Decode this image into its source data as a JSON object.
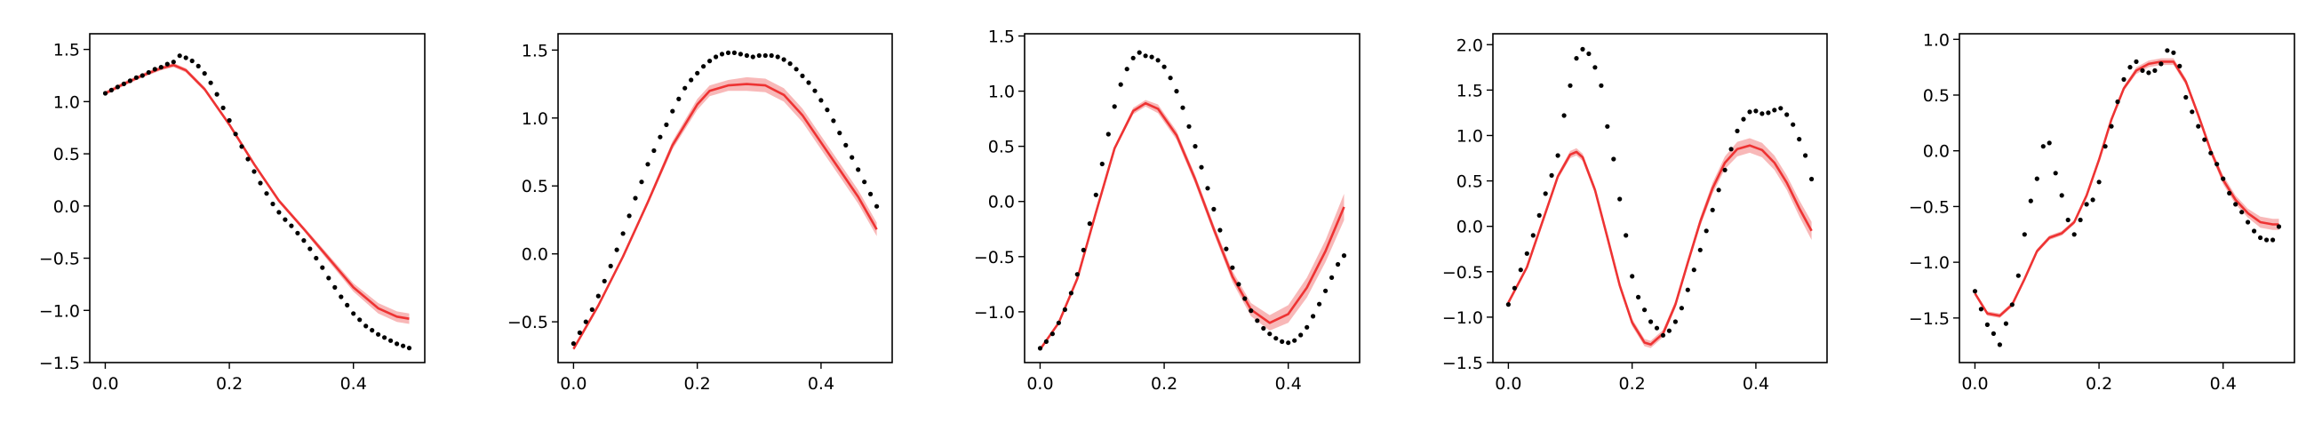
{
  "colors": {
    "model": "#ee3333",
    "band": "#f6a0a0",
    "observed": "#000000"
  },
  "chart_data": [
    {
      "type": "line",
      "xlim": [
        -0.025,
        0.515
      ],
      "ylim": [
        -1.5,
        1.65
      ],
      "xticks": [
        0.0,
        0.2,
        0.4
      ],
      "xtick_labels": [
        "0.0",
        "0.2",
        "0.4"
      ],
      "yticks": [
        -1.5,
        -1.0,
        -0.5,
        0.0,
        0.5,
        1.0,
        1.5
      ],
      "ytick_labels": [
        "−1.5",
        "−1.0",
        "−0.5",
        "0.0",
        "0.5",
        "1.0",
        "1.5"
      ],
      "series": [
        {
          "kind": "band_line",
          "x": [
            0.0,
            0.03,
            0.06,
            0.09,
            0.11,
            0.13,
            0.16,
            0.2,
            0.24,
            0.28,
            0.32,
            0.36,
            0.4,
            0.44,
            0.47,
            0.49
          ],
          "y": [
            1.08,
            1.17,
            1.25,
            1.32,
            1.35,
            1.3,
            1.12,
            0.78,
            0.4,
            0.05,
            -0.22,
            -0.5,
            -0.78,
            -0.98,
            -1.06,
            -1.08
          ],
          "band": [
            0.02,
            0.02,
            0.02,
            0.02,
            0.02,
            0.02,
            0.02,
            0.02,
            0.02,
            0.02,
            0.02,
            0.03,
            0.04,
            0.05,
            0.05,
            0.05
          ]
        },
        {
          "kind": "scatter",
          "x": [
            0.0,
            0.01,
            0.02,
            0.03,
            0.04,
            0.05,
            0.06,
            0.07,
            0.08,
            0.09,
            0.1,
            0.11,
            0.12,
            0.13,
            0.14,
            0.15,
            0.16,
            0.17,
            0.18,
            0.19,
            0.2,
            0.21,
            0.22,
            0.23,
            0.24,
            0.25,
            0.26,
            0.27,
            0.28,
            0.29,
            0.3,
            0.31,
            0.32,
            0.33,
            0.34,
            0.35,
            0.36,
            0.37,
            0.38,
            0.39,
            0.4,
            0.41,
            0.42,
            0.43,
            0.44,
            0.45,
            0.46,
            0.47,
            0.48,
            0.49
          ],
          "y": [
            1.08,
            1.11,
            1.14,
            1.17,
            1.2,
            1.23,
            1.25,
            1.28,
            1.31,
            1.33,
            1.36,
            1.38,
            1.44,
            1.42,
            1.39,
            1.34,
            1.27,
            1.18,
            1.07,
            0.94,
            0.82,
            0.69,
            0.57,
            0.45,
            0.33,
            0.22,
            0.12,
            0.02,
            -0.06,
            -0.13,
            -0.19,
            -0.26,
            -0.33,
            -0.41,
            -0.5,
            -0.59,
            -0.69,
            -0.78,
            -0.87,
            -0.95,
            -1.03,
            -1.09,
            -1.15,
            -1.19,
            -1.23,
            -1.26,
            -1.29,
            -1.32,
            -1.34,
            -1.36
          ]
        }
      ]
    },
    {
      "type": "line",
      "xlim": [
        -0.025,
        0.515
      ],
      "ylim": [
        -0.8,
        1.62
      ],
      "xticks": [
        0.0,
        0.2,
        0.4
      ],
      "xtick_labels": [
        "0.0",
        "0.2",
        "0.4"
      ],
      "yticks": [
        -0.5,
        0.0,
        0.5,
        1.0,
        1.5
      ],
      "ytick_labels": [
        "−0.5",
        "0.0",
        "0.5",
        "1.0",
        "1.5"
      ],
      "series": [
        {
          "kind": "band_line",
          "x": [
            0.0,
            0.04,
            0.08,
            0.12,
            0.16,
            0.2,
            0.22,
            0.25,
            0.28,
            0.31,
            0.34,
            0.37,
            0.4,
            0.43,
            0.46,
            0.49
          ],
          "y": [
            -0.7,
            -0.38,
            -0.02,
            0.38,
            0.8,
            1.1,
            1.2,
            1.24,
            1.25,
            1.24,
            1.17,
            1.02,
            0.82,
            0.62,
            0.42,
            0.18
          ],
          "band": [
            0.01,
            0.01,
            0.01,
            0.02,
            0.03,
            0.04,
            0.04,
            0.04,
            0.05,
            0.05,
            0.05,
            0.05,
            0.05,
            0.05,
            0.05,
            0.05
          ]
        },
        {
          "kind": "scatter",
          "x": [
            0.0,
            0.01,
            0.02,
            0.03,
            0.04,
            0.05,
            0.06,
            0.07,
            0.08,
            0.09,
            0.1,
            0.11,
            0.12,
            0.13,
            0.14,
            0.15,
            0.16,
            0.17,
            0.18,
            0.19,
            0.2,
            0.21,
            0.22,
            0.23,
            0.24,
            0.25,
            0.26,
            0.27,
            0.28,
            0.29,
            0.3,
            0.31,
            0.32,
            0.33,
            0.34,
            0.35,
            0.36,
            0.37,
            0.38,
            0.39,
            0.4,
            0.41,
            0.42,
            0.43,
            0.44,
            0.45,
            0.46,
            0.47,
            0.48,
            0.49
          ],
          "y": [
            -0.66,
            -0.58,
            -0.5,
            -0.41,
            -0.31,
            -0.2,
            -0.09,
            0.03,
            0.15,
            0.28,
            0.41,
            0.53,
            0.66,
            0.76,
            0.86,
            0.95,
            1.05,
            1.14,
            1.22,
            1.28,
            1.33,
            1.38,
            1.42,
            1.45,
            1.47,
            1.48,
            1.48,
            1.47,
            1.46,
            1.45,
            1.46,
            1.46,
            1.46,
            1.45,
            1.43,
            1.4,
            1.36,
            1.31,
            1.26,
            1.2,
            1.13,
            1.06,
            0.98,
            0.89,
            0.8,
            0.71,
            0.62,
            0.53,
            0.44,
            0.35
          ]
        }
      ]
    },
    {
      "type": "line",
      "xlim": [
        -0.025,
        0.515
      ],
      "ylim": [
        -1.46,
        1.52
      ],
      "xticks": [
        0.0,
        0.2,
        0.4
      ],
      "xtick_labels": [
        "0.0",
        "0.2",
        "0.4"
      ],
      "yticks": [
        -1.0,
        -0.5,
        0.0,
        0.5,
        1.0,
        1.5
      ],
      "ytick_labels": [
        "−1.0",
        "−0.5",
        "0.0",
        "0.5",
        "1.0",
        "1.5"
      ],
      "series": [
        {
          "kind": "band_line",
          "x": [
            0.0,
            0.03,
            0.06,
            0.09,
            0.12,
            0.15,
            0.17,
            0.19,
            0.22,
            0.25,
            0.28,
            0.31,
            0.34,
            0.37,
            0.4,
            0.43,
            0.46,
            0.49
          ],
          "y": [
            -1.34,
            -1.1,
            -0.7,
            -0.1,
            0.48,
            0.82,
            0.89,
            0.84,
            0.6,
            0.2,
            -0.25,
            -0.68,
            -0.98,
            -1.1,
            -1.02,
            -0.78,
            -0.45,
            -0.05
          ],
          "band": [
            0.01,
            0.01,
            0.01,
            0.02,
            0.02,
            0.03,
            0.03,
            0.04,
            0.04,
            0.04,
            0.04,
            0.05,
            0.06,
            0.07,
            0.08,
            0.09,
            0.1,
            0.12
          ]
        },
        {
          "kind": "scatter",
          "x": [
            0.0,
            0.01,
            0.02,
            0.03,
            0.04,
            0.05,
            0.06,
            0.07,
            0.08,
            0.09,
            0.1,
            0.11,
            0.12,
            0.13,
            0.14,
            0.15,
            0.16,
            0.17,
            0.18,
            0.19,
            0.2,
            0.21,
            0.22,
            0.23,
            0.24,
            0.25,
            0.26,
            0.27,
            0.28,
            0.29,
            0.3,
            0.31,
            0.32,
            0.33,
            0.34,
            0.35,
            0.36,
            0.37,
            0.38,
            0.39,
            0.4,
            0.41,
            0.42,
            0.43,
            0.44,
            0.45,
            0.46,
            0.47,
            0.48,
            0.49
          ],
          "y": [
            -1.33,
            -1.27,
            -1.2,
            -1.1,
            -0.98,
            -0.83,
            -0.66,
            -0.44,
            -0.2,
            0.06,
            0.34,
            0.61,
            0.86,
            1.06,
            1.2,
            1.3,
            1.35,
            1.32,
            1.31,
            1.28,
            1.22,
            1.12,
            1.0,
            0.85,
            0.68,
            0.5,
            0.31,
            0.12,
            -0.07,
            -0.26,
            -0.43,
            -0.6,
            -0.75,
            -0.88,
            -0.99,
            -1.08,
            -1.15,
            -1.2,
            -1.24,
            -1.27,
            -1.28,
            -1.26,
            -1.21,
            -1.14,
            -1.04,
            -0.93,
            -0.81,
            -0.69,
            -0.57,
            -0.49
          ]
        }
      ]
    },
    {
      "type": "line",
      "xlim": [
        -0.025,
        0.515
      ],
      "ylim": [
        -1.5,
        2.12
      ],
      "xticks": [
        0.0,
        0.2,
        0.4
      ],
      "xtick_labels": [
        "0.0",
        "0.2",
        "0.4"
      ],
      "yticks": [
        -1.5,
        -1.0,
        -0.5,
        0.0,
        0.5,
        1.0,
        1.5,
        2.0
      ],
      "ytick_labels": [
        "−1.5",
        "−1.0",
        "−0.5",
        "0.0",
        "0.5",
        "1.0",
        "1.5",
        "2.0"
      ],
      "series": [
        {
          "kind": "band_line",
          "x": [
            0.0,
            0.03,
            0.06,
            0.08,
            0.1,
            0.11,
            0.12,
            0.14,
            0.16,
            0.18,
            0.2,
            0.22,
            0.23,
            0.25,
            0.27,
            0.29,
            0.31,
            0.33,
            0.35,
            0.37,
            0.39,
            0.41,
            0.43,
            0.45,
            0.47,
            0.49
          ],
          "y": [
            -0.84,
            -0.45,
            0.15,
            0.55,
            0.79,
            0.82,
            0.76,
            0.4,
            -0.12,
            -0.65,
            -1.06,
            -1.28,
            -1.3,
            -1.18,
            -0.86,
            -0.4,
            0.05,
            0.42,
            0.7,
            0.85,
            0.89,
            0.84,
            0.7,
            0.48,
            0.2,
            -0.05
          ],
          "band": [
            0.01,
            0.01,
            0.02,
            0.03,
            0.04,
            0.04,
            0.04,
            0.04,
            0.04,
            0.04,
            0.04,
            0.04,
            0.04,
            0.04,
            0.04,
            0.04,
            0.05,
            0.06,
            0.07,
            0.08,
            0.08,
            0.08,
            0.08,
            0.08,
            0.09,
            0.1
          ]
        },
        {
          "kind": "scatter",
          "x": [
            0.0,
            0.01,
            0.02,
            0.03,
            0.04,
            0.05,
            0.06,
            0.07,
            0.08,
            0.09,
            0.1,
            0.11,
            0.12,
            0.13,
            0.14,
            0.15,
            0.16,
            0.17,
            0.18,
            0.19,
            0.2,
            0.21,
            0.22,
            0.23,
            0.24,
            0.25,
            0.26,
            0.27,
            0.28,
            0.29,
            0.3,
            0.31,
            0.32,
            0.33,
            0.34,
            0.35,
            0.36,
            0.37,
            0.38,
            0.39,
            0.4,
            0.41,
            0.42,
            0.43,
            0.44,
            0.45,
            0.46,
            0.47,
            0.48,
            0.49
          ],
          "y": [
            -0.86,
            -0.68,
            -0.48,
            -0.3,
            -0.1,
            0.12,
            0.36,
            0.56,
            0.78,
            1.22,
            1.55,
            1.85,
            1.95,
            1.9,
            1.75,
            1.55,
            1.1,
            0.74,
            0.3,
            -0.1,
            -0.55,
            -0.78,
            -0.92,
            -1.05,
            -1.12,
            -1.2,
            -1.15,
            -1.05,
            -0.9,
            -0.7,
            -0.48,
            -0.26,
            -0.05,
            0.18,
            0.4,
            0.62,
            0.85,
            1.05,
            1.18,
            1.26,
            1.27,
            1.24,
            1.25,
            1.28,
            1.3,
            1.23,
            1.12,
            0.96,
            0.78,
            0.52
          ]
        }
      ]
    },
    {
      "type": "line",
      "xlim": [
        -0.025,
        0.515
      ],
      "ylim": [
        -1.9,
        1.05
      ],
      "xticks": [
        0.0,
        0.2,
        0.4
      ],
      "xtick_labels": [
        "0.0",
        "0.2",
        "0.4"
      ],
      "yticks": [
        -1.5,
        -1.0,
        -0.5,
        0.0,
        0.5,
        1.0
      ],
      "ytick_labels": [
        "−1.5",
        "−1.0",
        "−0.5",
        "0.0",
        "0.5",
        "1.0"
      ],
      "series": [
        {
          "kind": "band_line",
          "x": [
            0.0,
            0.02,
            0.04,
            0.06,
            0.08,
            0.1,
            0.12,
            0.14,
            0.16,
            0.18,
            0.2,
            0.22,
            0.24,
            0.26,
            0.28,
            0.3,
            0.32,
            0.34,
            0.36,
            0.38,
            0.4,
            0.42,
            0.44,
            0.46,
            0.48,
            0.49
          ],
          "y": [
            -1.28,
            -1.46,
            -1.48,
            -1.38,
            -1.15,
            -0.9,
            -0.78,
            -0.74,
            -0.64,
            -0.4,
            -0.08,
            0.28,
            0.56,
            0.72,
            0.78,
            0.8,
            0.8,
            0.62,
            0.32,
            0.0,
            -0.26,
            -0.44,
            -0.56,
            -0.64,
            -0.66,
            -0.66
          ],
          "band": [
            0.01,
            0.02,
            0.02,
            0.02,
            0.02,
            0.02,
            0.02,
            0.02,
            0.02,
            0.02,
            0.02,
            0.02,
            0.02,
            0.03,
            0.03,
            0.03,
            0.03,
            0.03,
            0.03,
            0.03,
            0.04,
            0.04,
            0.04,
            0.05,
            0.05,
            0.05
          ]
        },
        {
          "kind": "scatter",
          "x": [
            0.0,
            0.01,
            0.02,
            0.03,
            0.04,
            0.05,
            0.06,
            0.07,
            0.08,
            0.09,
            0.1,
            0.11,
            0.12,
            0.13,
            0.14,
            0.15,
            0.16,
            0.17,
            0.18,
            0.19,
            0.2,
            0.21,
            0.22,
            0.23,
            0.24,
            0.25,
            0.26,
            0.27,
            0.28,
            0.29,
            0.3,
            0.31,
            0.32,
            0.33,
            0.34,
            0.35,
            0.36,
            0.37,
            0.38,
            0.39,
            0.4,
            0.41,
            0.42,
            0.43,
            0.44,
            0.45,
            0.46,
            0.47,
            0.48,
            0.49
          ],
          "y": [
            -1.26,
            -1.42,
            -1.56,
            -1.64,
            -1.74,
            -1.55,
            -1.38,
            -1.12,
            -0.75,
            -0.45,
            -0.25,
            0.04,
            0.07,
            -0.2,
            -0.4,
            -0.62,
            -0.75,
            -0.62,
            -0.48,
            -0.44,
            -0.28,
            0.04,
            0.22,
            0.44,
            0.64,
            0.75,
            0.8,
            0.72,
            0.7,
            0.72,
            0.78,
            0.9,
            0.88,
            0.76,
            0.48,
            0.35,
            0.22,
            0.1,
            -0.02,
            -0.12,
            -0.25,
            -0.38,
            -0.48,
            -0.55,
            -0.64,
            -0.72,
            -0.78,
            -0.8,
            -0.8,
            -0.68
          ]
        }
      ]
    }
  ]
}
